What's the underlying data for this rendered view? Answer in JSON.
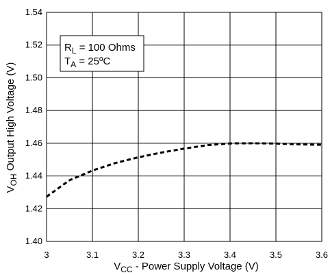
{
  "chart_data": {
    "type": "line",
    "x_title": {
      "main": "V",
      "sub": "CC",
      "rest": " - Power Supply Voltage (V)"
    },
    "y_title": {
      "main": "V",
      "sub": "OH",
      "rest": "  Output High Voltage (V)"
    },
    "xlim": [
      3.0,
      3.6
    ],
    "ylim": [
      1.4,
      1.54
    ],
    "x_ticks": [
      "3",
      "3.1",
      "3.2",
      "3.3",
      "3.4",
      "3.5",
      "3.6"
    ],
    "y_ticks": [
      "1.40",
      "1.42",
      "1.44",
      "1.46",
      "1.48",
      "1.50",
      "1.52",
      "1.54"
    ],
    "grid": true,
    "legend_position": "top-left",
    "legend": [
      {
        "main": "R",
        "sub": "L",
        "rest": " = 100 Ohms"
      },
      {
        "main": "T",
        "sub": "A",
        "rest": " = 25ºC"
      }
    ],
    "series": [
      {
        "line_style": "dashed",
        "color": "#000000",
        "x": [
          3.0,
          3.05,
          3.1,
          3.15,
          3.2,
          3.25,
          3.3,
          3.35,
          3.4,
          3.45,
          3.5,
          3.55,
          3.6
        ],
        "y": [
          1.4273,
          1.4374,
          1.4433,
          1.4479,
          1.4514,
          1.4543,
          1.4567,
          1.4588,
          1.4599,
          1.46,
          1.4598,
          1.4593,
          1.459
        ]
      }
    ]
  }
}
